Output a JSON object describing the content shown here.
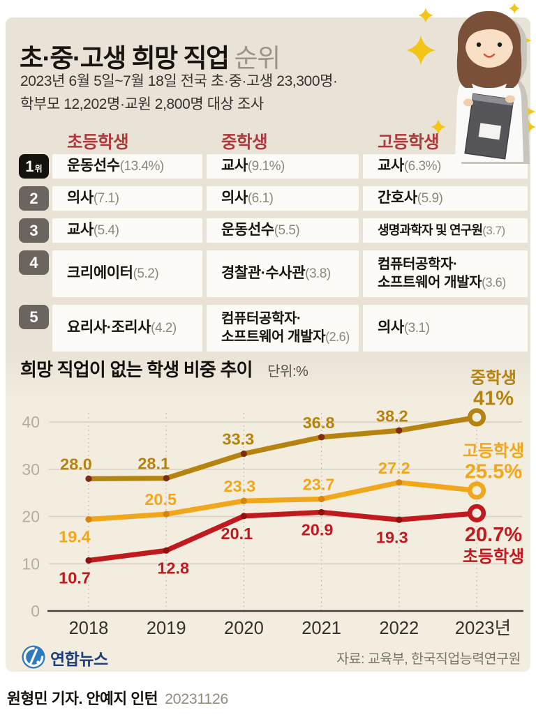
{
  "header": {
    "title_main": "초·중·고생 희망 직업",
    "title_sub": "순위",
    "subtitle_lines": [
      "2023년 6월 5일~7월 18일 전국 초·중·고생 23,300명·",
      "학부모 12,202명·교원 2,800명 대상 조사"
    ]
  },
  "ranking_table": {
    "columns": [
      "초등학생",
      "중학생",
      "고등학생"
    ],
    "rows": [
      {
        "rank": "1",
        "rank_suffix": "위",
        "cells": [
          {
            "job": "운동선수",
            "value": "13.4%"
          },
          {
            "job": "교사",
            "value": "9.1%"
          },
          {
            "job": "교사",
            "value": "6.3%"
          }
        ]
      },
      {
        "rank": "2",
        "cells": [
          {
            "job": "의사",
            "value": "7.1"
          },
          {
            "job": "의사",
            "value": "6.1"
          },
          {
            "job": "간호사",
            "value": "5.9"
          }
        ]
      },
      {
        "rank": "3",
        "cells": [
          {
            "job": "교사",
            "value": "5.4"
          },
          {
            "job": "운동선수",
            "value": "5.5"
          },
          {
            "job": "생명과학자 및 연구원",
            "value": "3.7"
          }
        ]
      },
      {
        "rank": "4",
        "cells": [
          {
            "job": "크리에이터",
            "value": "5.2"
          },
          {
            "job": "경찰관·수사관",
            "value": "3.8"
          },
          {
            "job": "컴퓨터공학자·\n소프트웨어 개발자",
            "value": "3.6"
          }
        ]
      },
      {
        "rank": "5",
        "cells": [
          {
            "job": "요리사·조리사",
            "value": "4.2"
          },
          {
            "job": "컴퓨터공학자·\n소프트웨어 개발자",
            "value": "2.6"
          },
          {
            "job": "의사",
            "value": "3.1"
          }
        ]
      }
    ]
  },
  "chart_data": {
    "type": "line",
    "title": "희망 직업이 없는 학생 비중 추이",
    "unit_label": "단위:%",
    "x": [
      2018,
      2019,
      2020,
      2021,
      2022,
      2023
    ],
    "x_tick_labels": [
      "2018",
      "2019",
      "2020",
      "2021",
      "2022",
      "2023년"
    ],
    "y_ticks": [
      0,
      10,
      20,
      30,
      40
    ],
    "ylim": [
      0,
      44
    ],
    "grid": "horizontal solid, vertical dotted",
    "legend_position": "end-of-line labels",
    "series": [
      {
        "name": "중학생",
        "color": "#b5830f",
        "marker_dot_color": "#7d2b12",
        "values": [
          28.0,
          28.1,
          33.3,
          36.8,
          38.2,
          41.0
        ],
        "point_labels": [
          "28.0",
          "28.1",
          "33.3",
          "36.8",
          "38.2"
        ],
        "end_label": "41%"
      },
      {
        "name": "고등학생",
        "color": "#f0a71c",
        "marker_dot_color": "#d8860b",
        "values": [
          19.4,
          20.5,
          23.3,
          23.7,
          27.2,
          25.5
        ],
        "point_labels": [
          "19.4",
          "20.5",
          "23.3",
          "23.7",
          "27.2"
        ],
        "end_label": "25.5%"
      },
      {
        "name": "초등학생",
        "color": "#c01a1f",
        "marker_dot_color": "#8c1110",
        "values": [
          10.7,
          12.8,
          20.1,
          20.9,
          19.3,
          20.7
        ],
        "point_labels": [
          "10.7",
          "12.8",
          "20.1",
          "20.9",
          "19.3"
        ],
        "end_label": "20.7%"
      }
    ]
  },
  "footer": {
    "logo_text": "연합뉴스",
    "source": "자료: 교육부, 한국직업능력연구원",
    "credit": "원형민 기자. 안예지 인턴",
    "date": "20231126"
  },
  "colors": {
    "panel_top_bg": "#e9e3d7",
    "panel_chart_bg": "#f3ede0",
    "cell_bg": "#fcfbf8",
    "column_header": "#ad393c",
    "badge_first": "#16130e",
    "badge_rest": "#6a665f",
    "logo_blue": "#2f79bd"
  }
}
